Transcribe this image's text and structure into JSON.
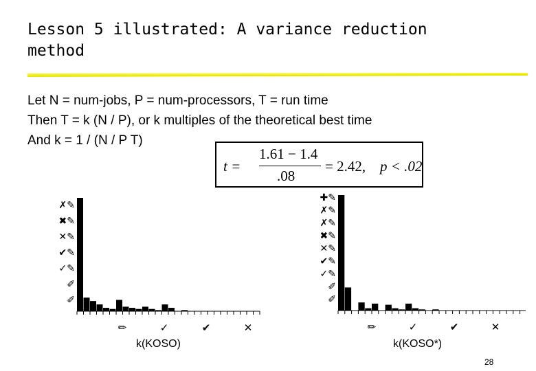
{
  "slide": {
    "title": "Lesson 5 illustrated:  A variance reduction method",
    "lines": [
      "Let  N = num-jobs, P = num-processors, T = run time",
      "Then T = k (N / P), or k multiples of the theoretical best time",
      "And k = 1 / (N / P T)"
    ],
    "formula": {
      "lhs": "t =",
      "numerator": "1.61 − 1.4",
      "denominator": ".08",
      "result": "= 2.42,",
      "p": "p < .02"
    },
    "page_number": "28"
  },
  "chart_data": [
    {
      "type": "bar",
      "xlabel": "k(KOSO)",
      "ytick_glyphs": [
        "✐",
        "✐",
        "✓✎",
        "✔✎",
        "✕✎",
        "✖✎",
        "✗✎"
      ],
      "xtick_glyphs": [
        "✏",
        "✓",
        "✔",
        "✕"
      ],
      "values": [
        100,
        12,
        9,
        6,
        3,
        2,
        10,
        4,
        3,
        2,
        4,
        2,
        1,
        6,
        3,
        0,
        1,
        0,
        0,
        0,
        0,
        0,
        0,
        0,
        0,
        0,
        0,
        0
      ]
    },
    {
      "type": "bar",
      "xlabel": "k(KOSO*)",
      "ytick_glyphs": [
        "✐",
        "✐",
        "✓✎",
        "✔✎",
        "✕✎",
        "✖✎",
        "✗✎",
        "✗✎",
        "✚✎"
      ],
      "xtick_glyphs": [
        "✏",
        "✓",
        "✔",
        "✕"
      ],
      "values": [
        100,
        20,
        0,
        7,
        2,
        6,
        0,
        5,
        2,
        1,
        6,
        2,
        1,
        0,
        1,
        0,
        0,
        0,
        0,
        0,
        0,
        0,
        0,
        0,
        0,
        0,
        0,
        0
      ]
    }
  ]
}
